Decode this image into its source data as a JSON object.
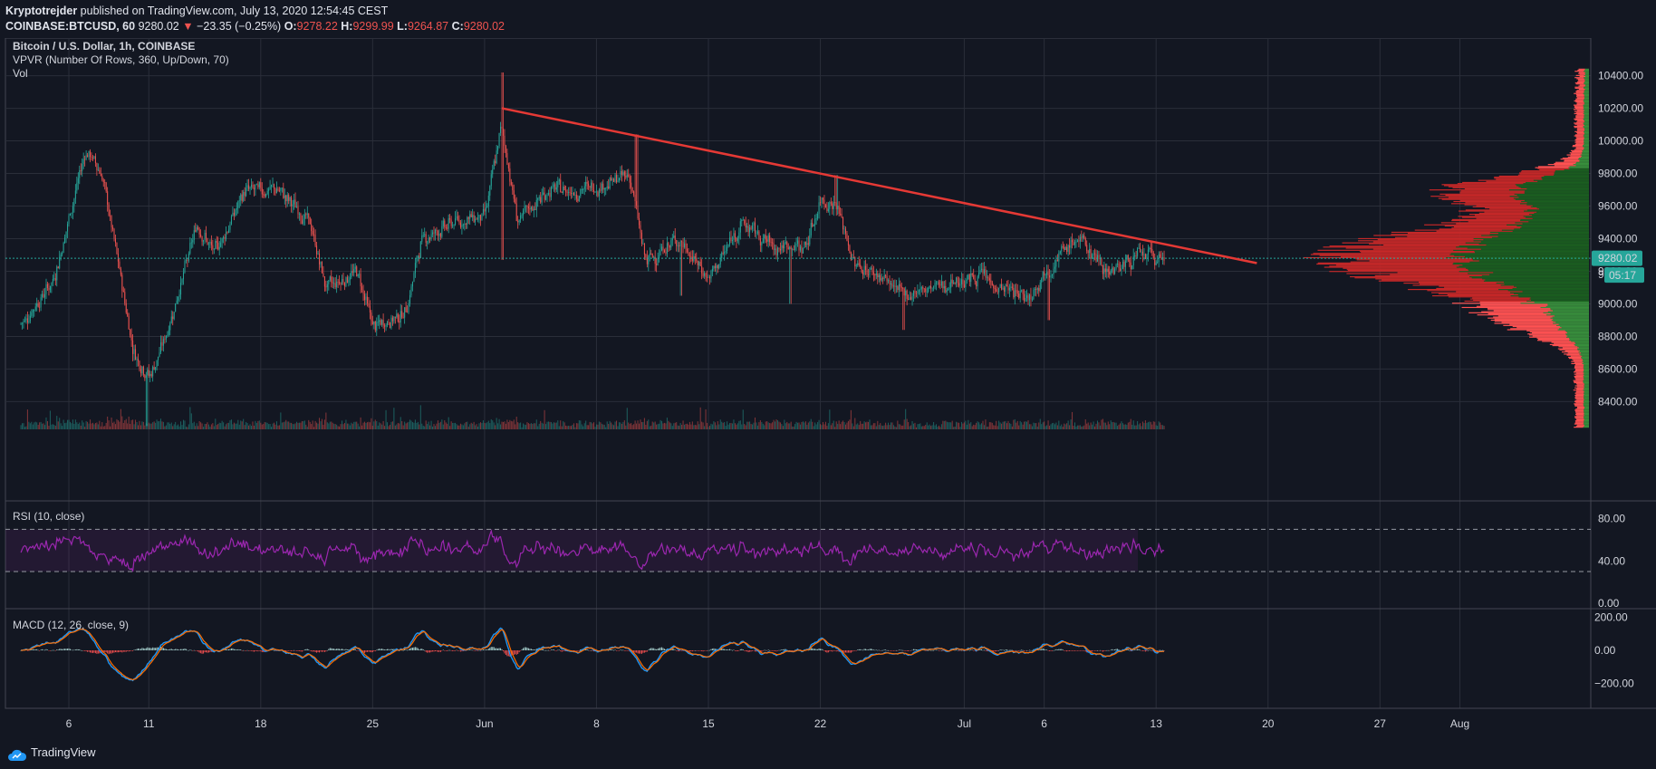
{
  "header": {
    "author": "Kryptotrejder",
    "published": "published on TradingView.com, July 13, 2020 12:54:45 CEST",
    "symbol": "COINBASE:BTCUSD, 60",
    "last": "9280.02",
    "change_arrow": "▼",
    "change": "−23.35 (−0.25%)",
    "o_label": "O:",
    "o_value": "9278.22",
    "h_label": "H:",
    "h_value": "9299.99",
    "l_label": "L:",
    "l_value": "9264.87",
    "c_label": "C:",
    "c_value": "9280.02"
  },
  "main_legend": {
    "title": "Bitcoin / U.S. Dollar, 1h, COINBASE",
    "vpvr": "VPVR (Number Of Rows, 360, Up/Down, 70)",
    "vol": "Vol"
  },
  "rsi_legend": "RSI (10, close)",
  "macd_legend": "MACD (12, 26, close, 9)",
  "footer": {
    "brand": "TradingView"
  },
  "colors": {
    "background": "#131722",
    "grid": "#2a2e39",
    "up": "#26a69a",
    "down": "#ef5350",
    "trendline": "#e53935",
    "vpvr_up": "#388e3c",
    "vpvr_down": "#ff5252",
    "rsi": "#9c27b0",
    "macd": "#2196f3",
    "signal": "#ff6d00",
    "last_price_tag": "#26a69a"
  },
  "chart_data": [
    {
      "type": "candlestick",
      "title": "Bitcoin / U.S. Dollar, 1h, COINBASE",
      "x_ticks": [
        "6",
        "11",
        "18",
        "25",
        "Jun",
        "8",
        "15",
        "22",
        "Jul",
        "6",
        "13",
        "20",
        "27",
        "Aug"
      ],
      "y_ticks": [
        "8400.00",
        "8600.00",
        "8800.00",
        "9000.00",
        "9200.00",
        "9400.00",
        "9600.00",
        "9800.00",
        "10000.00",
        "10200.00",
        "10400.00"
      ],
      "ylim": [
        8230,
        10520
      ],
      "last_price": "9280.02",
      "countdown": "05:17",
      "hidden_tick": "92",
      "trendline": {
        "from": {
          "date": "Jun 2",
          "price": 10200
        },
        "to": {
          "date": "Jul 19",
          "price": 9250
        }
      },
      "price_path": [
        [
          "May 3",
          8880
        ],
        [
          "May 5",
          9150
        ],
        [
          "May 7",
          9950
        ],
        [
          "May 8",
          9800
        ],
        [
          "May 10",
          8700
        ],
        [
          "May 11",
          8550
        ],
        [
          "May 12",
          8800
        ],
        [
          "May 14",
          9500
        ],
        [
          "May 15",
          9300
        ],
        [
          "May 17",
          9700
        ],
        [
          "May 19",
          9700
        ],
        [
          "May 21",
          9500
        ],
        [
          "May 22",
          9100
        ],
        [
          "May 24",
          9200
        ],
        [
          "May 25",
          8850
        ],
        [
          "May 27",
          8950
        ],
        [
          "May 28",
          9400
        ],
        [
          "May 30",
          9500
        ],
        [
          "Jun 1",
          9550
        ],
        [
          "Jun 2",
          10100
        ],
        [
          "Jun 3",
          9500
        ],
        [
          "Jun 5",
          9700
        ],
        [
          "Jun 7",
          9700
        ],
        [
          "Jun 9",
          9750
        ],
        [
          "Jun 10",
          9800
        ],
        [
          "Jun 11",
          9250
        ],
        [
          "Jun 13",
          9400
        ],
        [
          "Jun 15",
          9150
        ],
        [
          "Jun 17",
          9500
        ],
        [
          "Jun 19",
          9350
        ],
        [
          "Jun 21",
          9350
        ],
        [
          "Jun 22",
          9650
        ],
        [
          "Jun 23",
          9600
        ],
        [
          "Jun 24",
          9250
        ],
        [
          "Jun 26",
          9150
        ],
        [
          "Jun 27",
          9050
        ],
        [
          "Jun 29",
          9100
        ],
        [
          "Jul 1",
          9150
        ],
        [
          "Jul 2",
          9180
        ],
        [
          "Jul 3",
          9100
        ],
        [
          "Jul 5",
          9050
        ],
        [
          "Jul 6",
          9200
        ],
        [
          "Jul 7",
          9300
        ],
        [
          "Jul 8",
          9400
        ],
        [
          "Jul 9",
          9300
        ],
        [
          "Jul 10",
          9200
        ],
        [
          "Jul 11",
          9250
        ],
        [
          "Jul 12",
          9300
        ],
        [
          "Jul 13",
          9280
        ]
      ]
    },
    {
      "type": "line",
      "title": "RSI (10, close)",
      "y_ticks": [
        "0.00",
        "40.00",
        "80.00"
      ],
      "ylim": [
        0,
        90
      ],
      "bands": [
        30,
        70
      ]
    },
    {
      "type": "line",
      "title": "MACD (12, 26, close, 9)",
      "y_ticks": [
        "−200.00",
        "0.00",
        "200.00"
      ],
      "ylim": [
        -330,
        220
      ],
      "series": [
        {
          "values": "MACD line"
        },
        {
          "values": "signal line"
        }
      ]
    }
  ]
}
